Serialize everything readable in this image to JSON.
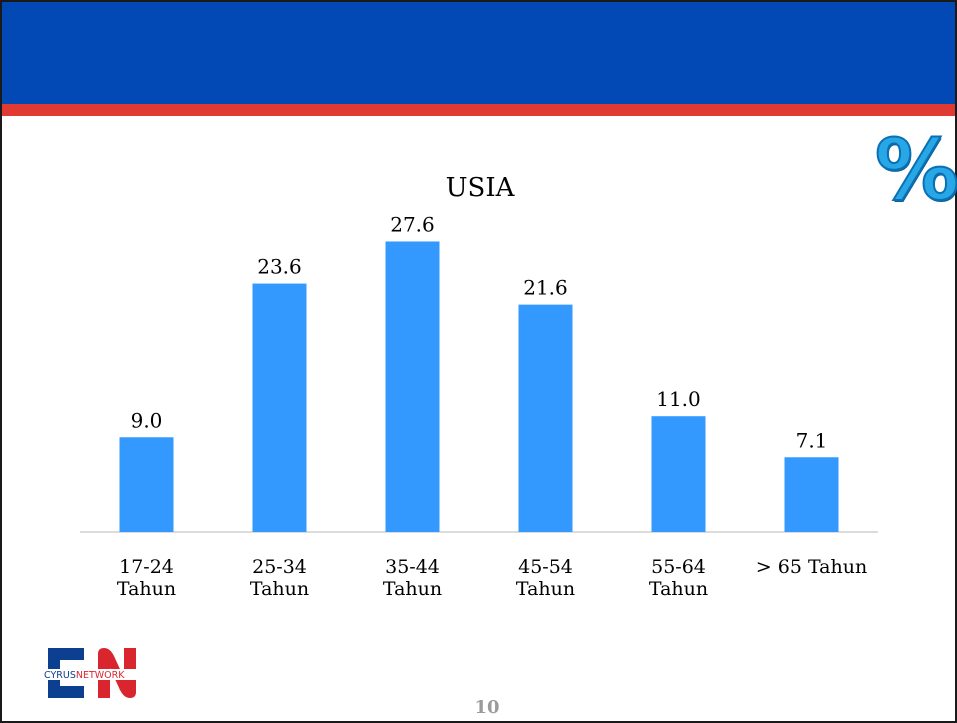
{
  "page": {
    "number": "10"
  },
  "decor": {
    "percent_symbol": "%"
  },
  "logo": {
    "text_part1": "CYRUS",
    "text_part2": "NETWORK",
    "brand_blue": "#0c3f8f",
    "brand_red": "#d9262e"
  },
  "colors": {
    "header": "#0349b6",
    "stripe": "#e03a33",
    "bar": "#3399ff",
    "percent": "#27a7e6"
  },
  "chart_data": {
    "type": "bar",
    "title": "USIA",
    "categories": [
      [
        "17-24",
        "Tahun"
      ],
      [
        "25-34",
        "Tahun"
      ],
      [
        "35-44",
        "Tahun"
      ],
      [
        "45-54",
        "Tahun"
      ],
      [
        "55-64",
        "Tahun"
      ],
      [
        "> 65 Tahun"
      ]
    ],
    "values": [
      9.0,
      23.6,
      27.6,
      21.6,
      11.0,
      7.1
    ],
    "data_labels": [
      "9.0",
      "23.6",
      "27.6",
      "21.6",
      "11.0",
      "7.1"
    ],
    "ylim": [
      0,
      28.5
    ],
    "grid": false,
    "legend": "none"
  }
}
